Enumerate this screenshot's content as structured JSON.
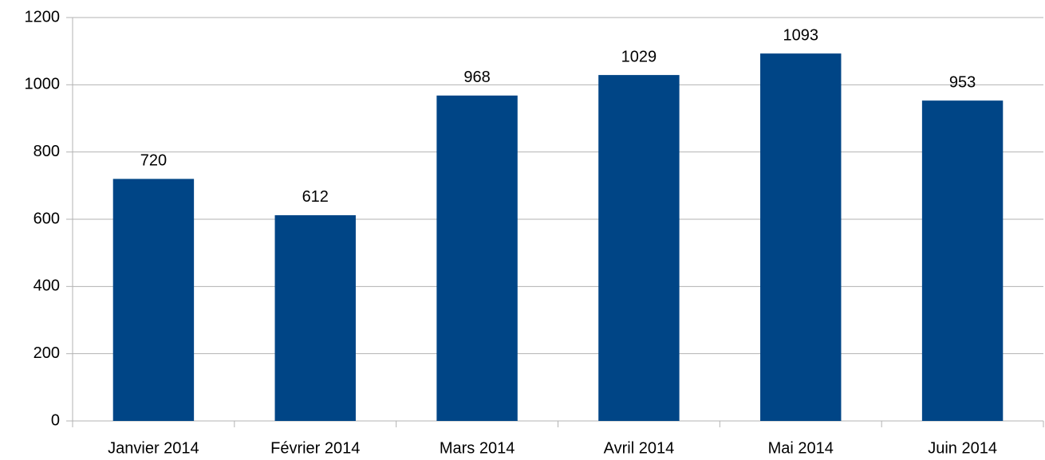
{
  "chart_data": {
    "type": "bar",
    "categories": [
      "Janvier 2014",
      "Février 2014",
      "Mars 2014",
      "Avril 2014",
      "Mai 2014",
      "Juin 2014"
    ],
    "values": [
      720,
      612,
      968,
      1029,
      1093,
      953
    ],
    "color": "#004586",
    "ylim": [
      0,
      1200
    ],
    "yticks": [
      0,
      200,
      400,
      600,
      800,
      1000,
      1200
    ],
    "grid": true
  }
}
